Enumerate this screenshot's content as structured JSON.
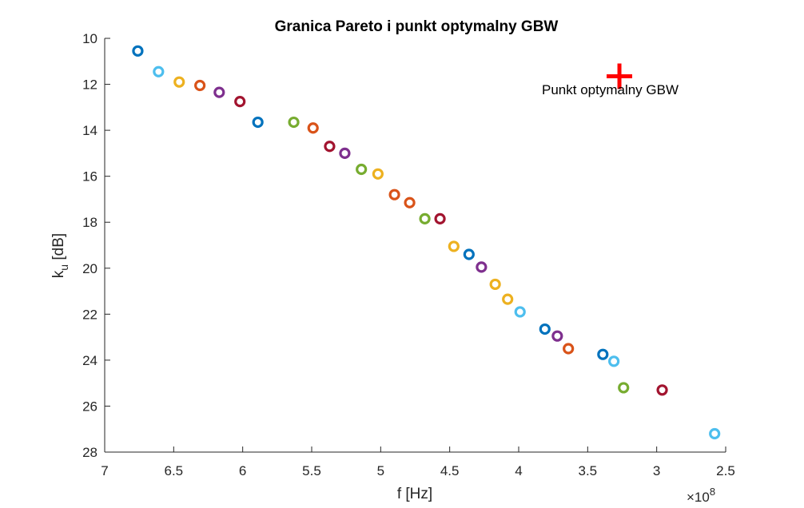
{
  "chart_data": {
    "type": "scatter",
    "title": "Granica Pareto i punkt optymalny GBW",
    "xlabel": "f [Hz]",
    "ylabel_base": "k",
    "ylabel_sub": "u",
    "ylabel_rest": " [dB]",
    "exponent_base": "×10",
    "exponent_power": "8",
    "xlim": [
      2.5,
      7
    ],
    "ylim": [
      10,
      28
    ],
    "x_reversed": true,
    "y_reversed": true,
    "grid": false,
    "x_ticks": [
      "2.5",
      "3",
      "3.5",
      "4",
      "4.5",
      "5",
      "5.5",
      "6",
      "6.5",
      "7"
    ],
    "y_ticks": [
      "10",
      "12",
      "14",
      "16",
      "18",
      "20",
      "22",
      "24",
      "26",
      "28"
    ],
    "points": [
      {
        "x": 6.76,
        "y": 10.55,
        "color": "#0072BD"
      },
      {
        "x": 6.61,
        "y": 11.45,
        "color": "#4DBEEE"
      },
      {
        "x": 6.46,
        "y": 11.9,
        "color": "#EDB120"
      },
      {
        "x": 6.31,
        "y": 12.05,
        "color": "#D95319"
      },
      {
        "x": 6.17,
        "y": 12.35,
        "color": "#7E2F8E"
      },
      {
        "x": 6.02,
        "y": 12.75,
        "color": "#A2142F"
      },
      {
        "x": 5.89,
        "y": 13.65,
        "color": "#0072BD"
      },
      {
        "x": 5.63,
        "y": 13.65,
        "color": "#77AC30"
      },
      {
        "x": 5.49,
        "y": 13.9,
        "color": "#D95319"
      },
      {
        "x": 5.37,
        "y": 14.7,
        "color": "#A2142F"
      },
      {
        "x": 5.26,
        "y": 15.0,
        "color": "#7E2F8E"
      },
      {
        "x": 5.14,
        "y": 15.7,
        "color": "#77AC30"
      },
      {
        "x": 5.02,
        "y": 15.9,
        "color": "#EDB120"
      },
      {
        "x": 4.9,
        "y": 16.8,
        "color": "#D95319"
      },
      {
        "x": 4.79,
        "y": 17.15,
        "color": "#D95319"
      },
      {
        "x": 4.68,
        "y": 17.85,
        "color": "#77AC30"
      },
      {
        "x": 4.57,
        "y": 17.85,
        "color": "#A2142F"
      },
      {
        "x": 4.47,
        "y": 19.05,
        "color": "#EDB120"
      },
      {
        "x": 4.36,
        "y": 19.4,
        "color": "#0072BD"
      },
      {
        "x": 4.27,
        "y": 19.95,
        "color": "#7E2F8E"
      },
      {
        "x": 4.17,
        "y": 20.7,
        "color": "#EDB120"
      },
      {
        "x": 4.08,
        "y": 21.35,
        "color": "#EDB120"
      },
      {
        "x": 3.99,
        "y": 21.9,
        "color": "#4DBEEE"
      },
      {
        "x": 3.81,
        "y": 22.65,
        "color": "#0072BD"
      },
      {
        "x": 3.72,
        "y": 22.95,
        "color": "#7E2F8E"
      },
      {
        "x": 3.64,
        "y": 23.5,
        "color": "#D95319"
      },
      {
        "x": 3.39,
        "y": 23.75,
        "color": "#0072BD"
      },
      {
        "x": 3.31,
        "y": 24.05,
        "color": "#4DBEEE"
      },
      {
        "x": 3.24,
        "y": 25.2,
        "color": "#77AC30"
      },
      {
        "x": 2.96,
        "y": 25.3,
        "color": "#A2142F"
      },
      {
        "x": 2.58,
        "y": 27.2,
        "color": "#4DBEEE"
      }
    ],
    "optimum": {
      "x": 3.27,
      "y": 11.65,
      "color": "#FF0000",
      "label": "Punkt optymalny GBW"
    }
  }
}
